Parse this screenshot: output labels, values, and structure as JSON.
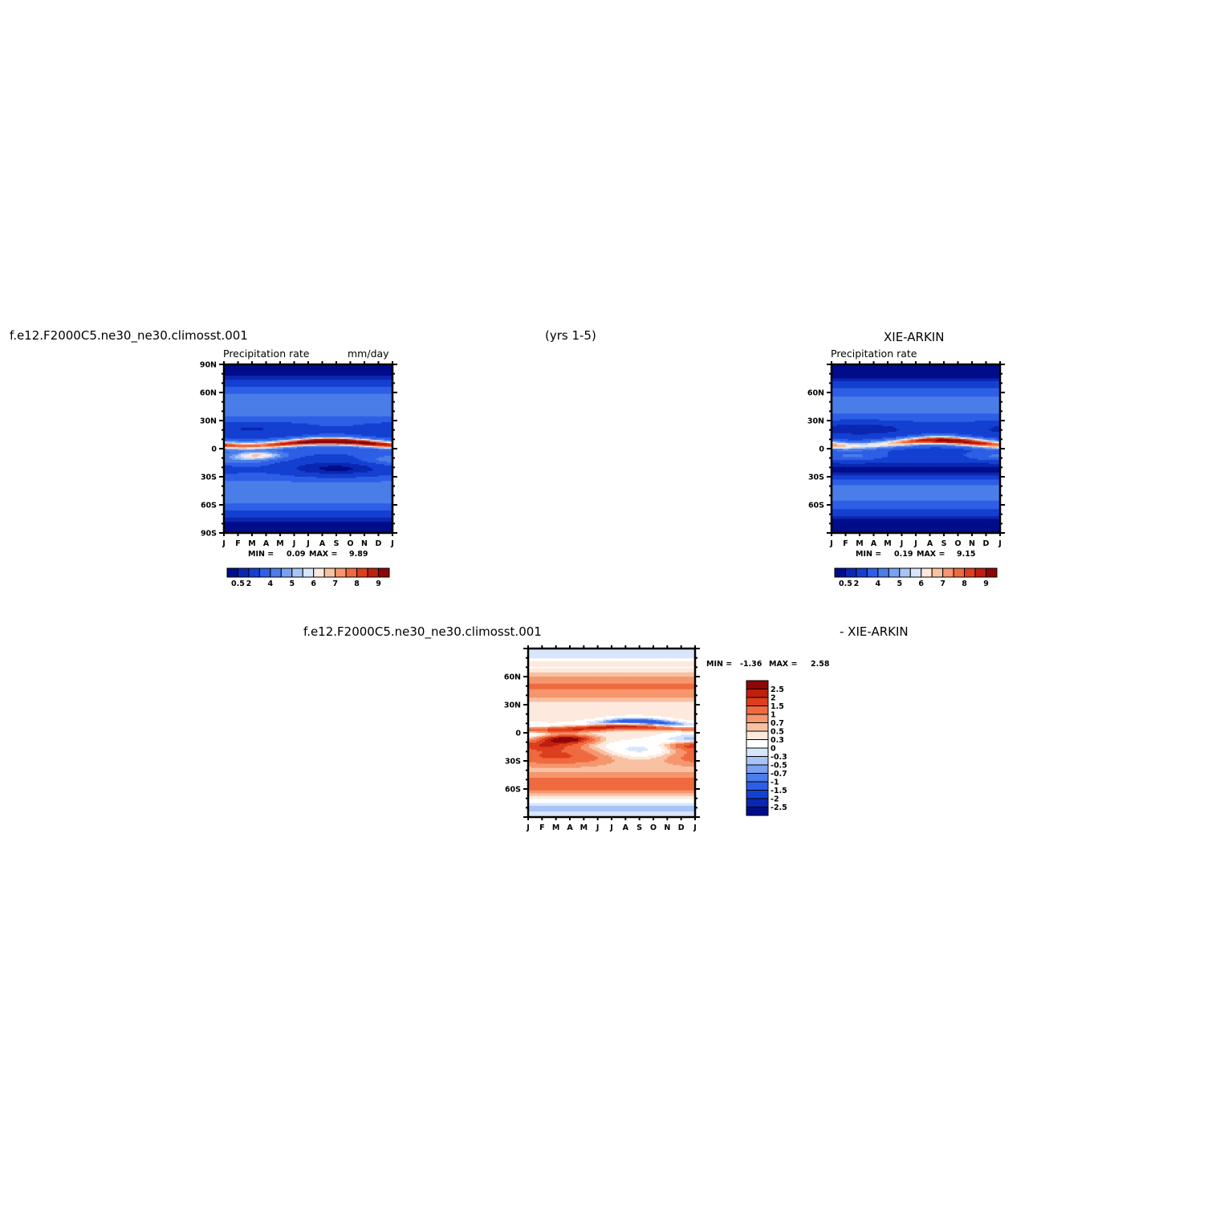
{
  "header": {
    "case_name": "f.e12.F2000C5.ne30_ne30.climosst.001",
    "years": "(yrs 1-5)",
    "obs_name": "XIE-ARKIN",
    "diff_case_name": "f.e12.F2000C5.ne30_ne30.climosst.001",
    "diff_obs_name": "- XIE-ARKIN"
  },
  "chart_data": [
    {
      "type": "heatmap",
      "id": "model",
      "subtitle": "Precipitation rate",
      "units": "mm/day",
      "x_ticks": [
        "J",
        "F",
        "M",
        "A",
        "M",
        "J",
        "J",
        "A",
        "S",
        "O",
        "N",
        "D",
        "J"
      ],
      "y_ticks": [
        "90N",
        "60N",
        "30N",
        "0",
        "30S",
        "60S",
        "90S"
      ],
      "ylim": [
        -90,
        90
      ],
      "min_label": "MIN =",
      "min_value": "0.09",
      "max_label": "MAX =",
      "max_value": "9.89",
      "colorbar": {
        "labels": [
          "0.5",
          "2",
          "4",
          "5",
          "6",
          "7",
          "8",
          "9"
        ],
        "colors": [
          "#000d8a",
          "#0a27b2",
          "#1440d2",
          "#2d5fe6",
          "#4a7de8",
          "#7aa0f0",
          "#a8c4f6",
          "#d8e6fc",
          "#fde9dd",
          "#f8c1a2",
          "#f5966e",
          "#ef6a3f",
          "#dd3e1e",
          "#bf1f0e",
          "#8e0606"
        ]
      },
      "features": {
        "itcz_peak_mm_day": 9.89,
        "high_lat_mm_day": 0.5,
        "mid_lat_mm_day": 3.5
      }
    },
    {
      "type": "heatmap",
      "id": "obs",
      "subtitle": "Precipitation rate",
      "x_ticks": [
        "J",
        "F",
        "M",
        "A",
        "M",
        "J",
        "J",
        "A",
        "S",
        "O",
        "N",
        "D",
        "J"
      ],
      "y_ticks": [
        "60N",
        "30N",
        "0",
        "30S",
        "60S"
      ],
      "ylim": [
        -90,
        90
      ],
      "min_label": "MIN =",
      "min_value": "0.19",
      "max_label": "MAX =",
      "max_value": "9.15",
      "colorbar": {
        "labels": [
          "0.5",
          "2",
          "4",
          "5",
          "6",
          "7",
          "8",
          "9"
        ],
        "colors": [
          "#000d8a",
          "#0a27b2",
          "#1440d2",
          "#2d5fe6",
          "#4a7de8",
          "#7aa0f0",
          "#a8c4f6",
          "#d8e6fc",
          "#fde9dd",
          "#f8c1a2",
          "#f5966e",
          "#ef6a3f",
          "#dd3e1e",
          "#bf1f0e",
          "#8e0606"
        ]
      }
    },
    {
      "type": "heatmap",
      "id": "difference",
      "x_ticks": [
        "J",
        "F",
        "M",
        "A",
        "M",
        "J",
        "J",
        "A",
        "S",
        "O",
        "N",
        "D",
        "J"
      ],
      "y_ticks": [
        "60N",
        "30N",
        "0",
        "30S",
        "60S"
      ],
      "ylim": [
        -90,
        90
      ],
      "min_label": "MIN =",
      "min_value": "-1.36",
      "max_label": "MAX =",
      "max_value": "2.58",
      "colorbar": {
        "labels": [
          "2.5",
          "2",
          "1.5",
          "1",
          "0.7",
          "0.5",
          "0.3",
          "0",
          "-0.3",
          "-0.5",
          "-0.7",
          "-1",
          "-1.5",
          "-2",
          "-2.5"
        ],
        "colors": [
          "#8e0606",
          "#bf1f0e",
          "#dd3e1e",
          "#ef6a3f",
          "#f5966e",
          "#f8c1a2",
          "#fde9dd",
          "#ffffff",
          "#d8e6fc",
          "#a8c4f6",
          "#7aa0f0",
          "#4a7de8",
          "#2d5fe6",
          "#1440d2",
          "#0a27b2",
          "#000d8a"
        ]
      }
    }
  ]
}
